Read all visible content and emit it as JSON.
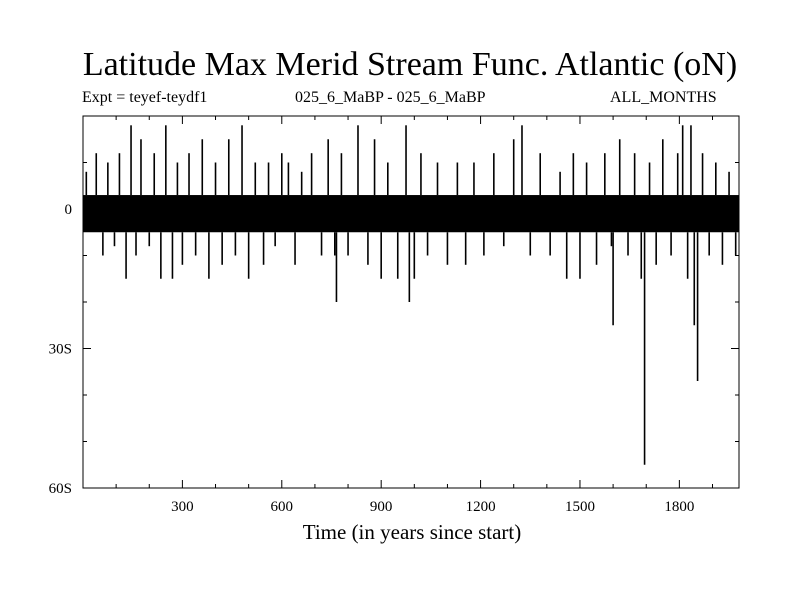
{
  "chart_data": {
    "type": "line",
    "title": "Latitude Max Merid Stream Func. Atlantic (oN)",
    "subtitle_left": "Expt = teyef-teydf1",
    "subtitle_center": "025_6_MaBP - 025_6_MaBP",
    "subtitle_right": "ALL_MONTHS",
    "xlabel": "Time (in years since start)",
    "ylabel": "",
    "xlim": [
      0,
      1980
    ],
    "ylim": [
      -60,
      20
    ],
    "x_ticks": [
      {
        "value": 300,
        "label": "300"
      },
      {
        "value": 600,
        "label": "600"
      },
      {
        "value": 900,
        "label": "900"
      },
      {
        "value": 1200,
        "label": "1200"
      },
      {
        "value": 1500,
        "label": "1500"
      },
      {
        "value": 1800,
        "label": "1800"
      }
    ],
    "y_ticks": [
      {
        "value": 0,
        "label": "0"
      },
      {
        "value": -30,
        "label": "30S"
      },
      {
        "value": -60,
        "label": "60S"
      }
    ],
    "band": {
      "min": -5,
      "max": 3
    },
    "spikes": [
      {
        "x": 10,
        "y": 8
      },
      {
        "x": 40,
        "y": 12
      },
      {
        "x": 60,
        "y": -10
      },
      {
        "x": 75,
        "y": 10
      },
      {
        "x": 95,
        "y": -8
      },
      {
        "x": 110,
        "y": 12
      },
      {
        "x": 130,
        "y": -15
      },
      {
        "x": 145,
        "y": 18
      },
      {
        "x": 160,
        "y": -10
      },
      {
        "x": 175,
        "y": 15
      },
      {
        "x": 200,
        "y": -8
      },
      {
        "x": 215,
        "y": 12
      },
      {
        "x": 235,
        "y": -15
      },
      {
        "x": 250,
        "y": 18
      },
      {
        "x": 270,
        "y": -15
      },
      {
        "x": 285,
        "y": 10
      },
      {
        "x": 300,
        "y": -12
      },
      {
        "x": 320,
        "y": 12
      },
      {
        "x": 340,
        "y": -10
      },
      {
        "x": 360,
        "y": 15
      },
      {
        "x": 380,
        "y": -15
      },
      {
        "x": 400,
        "y": 10
      },
      {
        "x": 420,
        "y": -12
      },
      {
        "x": 440,
        "y": 15
      },
      {
        "x": 460,
        "y": -10
      },
      {
        "x": 480,
        "y": 18
      },
      {
        "x": 500,
        "y": -15
      },
      {
        "x": 520,
        "y": 10
      },
      {
        "x": 545,
        "y": -12
      },
      {
        "x": 560,
        "y": 10
      },
      {
        "x": 580,
        "y": -8
      },
      {
        "x": 600,
        "y": 12
      },
      {
        "x": 620,
        "y": 10
      },
      {
        "x": 640,
        "y": -12
      },
      {
        "x": 660,
        "y": 8
      },
      {
        "x": 690,
        "y": 12
      },
      {
        "x": 720,
        "y": -10
      },
      {
        "x": 740,
        "y": 15
      },
      {
        "x": 760,
        "y": -10
      },
      {
        "x": 765,
        "y": -20
      },
      {
        "x": 780,
        "y": 12
      },
      {
        "x": 800,
        "y": -10
      },
      {
        "x": 830,
        "y": 18
      },
      {
        "x": 860,
        "y": -12
      },
      {
        "x": 880,
        "y": 15
      },
      {
        "x": 900,
        "y": -15
      },
      {
        "x": 920,
        "y": 10
      },
      {
        "x": 950,
        "y": -15
      },
      {
        "x": 975,
        "y": 18
      },
      {
        "x": 985,
        "y": -20
      },
      {
        "x": 1000,
        "y": -15
      },
      {
        "x": 1020,
        "y": 12
      },
      {
        "x": 1040,
        "y": -10
      },
      {
        "x": 1070,
        "y": 10
      },
      {
        "x": 1100,
        "y": -12
      },
      {
        "x": 1130,
        "y": 10
      },
      {
        "x": 1155,
        "y": -12
      },
      {
        "x": 1180,
        "y": 10
      },
      {
        "x": 1210,
        "y": -10
      },
      {
        "x": 1240,
        "y": 12
      },
      {
        "x": 1270,
        "y": -8
      },
      {
        "x": 1300,
        "y": 15
      },
      {
        "x": 1325,
        "y": 18
      },
      {
        "x": 1350,
        "y": -10
      },
      {
        "x": 1380,
        "y": 12
      },
      {
        "x": 1410,
        "y": -10
      },
      {
        "x": 1440,
        "y": 8
      },
      {
        "x": 1460,
        "y": -15
      },
      {
        "x": 1480,
        "y": 12
      },
      {
        "x": 1500,
        "y": -15
      },
      {
        "x": 1520,
        "y": 10
      },
      {
        "x": 1550,
        "y": -12
      },
      {
        "x": 1575,
        "y": 12
      },
      {
        "x": 1595,
        "y": -8
      },
      {
        "x": 1600,
        "y": -25
      },
      {
        "x": 1620,
        "y": 15
      },
      {
        "x": 1645,
        "y": -10
      },
      {
        "x": 1665,
        "y": 12
      },
      {
        "x": 1685,
        "y": -15
      },
      {
        "x": 1695,
        "y": -55
      },
      {
        "x": 1710,
        "y": 10
      },
      {
        "x": 1730,
        "y": -12
      },
      {
        "x": 1750,
        "y": 15
      },
      {
        "x": 1775,
        "y": -10
      },
      {
        "x": 1795,
        "y": 12
      },
      {
        "x": 1810,
        "y": 18
      },
      {
        "x": 1825,
        "y": -15
      },
      {
        "x": 1835,
        "y": 18
      },
      {
        "x": 1845,
        "y": -25
      },
      {
        "x": 1855,
        "y": -37
      },
      {
        "x": 1870,
        "y": 12
      },
      {
        "x": 1890,
        "y": -10
      },
      {
        "x": 1910,
        "y": 10
      },
      {
        "x": 1930,
        "y": -12
      },
      {
        "x": 1950,
        "y": 8
      },
      {
        "x": 1970,
        "y": -10
      }
    ]
  }
}
